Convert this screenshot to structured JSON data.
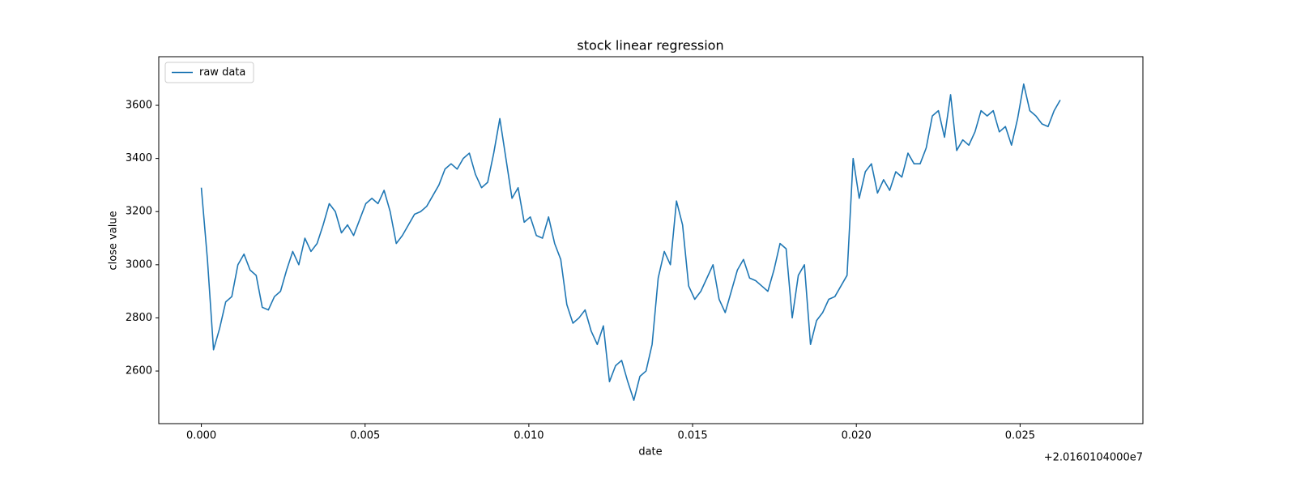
{
  "chart_data": {
    "type": "line",
    "title": "stock linear regression",
    "xlabel": "date",
    "ylabel": "close value",
    "x_offset_label": "+2.0160104000e7",
    "xlim": [
      -0.0013,
      0.02875
    ],
    "ylim": [
      2402,
      3783
    ],
    "xticks": [
      {
        "value": 0,
        "label": "0.000"
      },
      {
        "value": 0.005,
        "label": "0.005"
      },
      {
        "value": 0.01,
        "label": "0.010"
      },
      {
        "value": 0.015,
        "label": "0.015"
      },
      {
        "value": 0.02,
        "label": "0.020"
      },
      {
        "value": 0.025,
        "label": "0.025"
      }
    ],
    "yticks": [
      2600,
      2800,
      3000,
      3200,
      3400,
      3600
    ],
    "grid": false,
    "legend": "upper left",
    "x": [
      0,
      0.000186,
      0.000372,
      0.000558,
      0.000744,
      0.00093,
      0.001116,
      0.001302,
      0.001488,
      0.001674,
      0.00186,
      0.002046,
      0.002232,
      0.002418,
      0.002604,
      0.00279,
      0.002976,
      0.003162,
      0.003348,
      0.003534,
      0.00372,
      0.003906,
      0.004092,
      0.004278,
      0.004464,
      0.00465,
      0.004836,
      0.005022,
      0.005208,
      0.005394,
      0.00558,
      0.005766,
      0.005952,
      0.006138,
      0.006324,
      0.00651,
      0.006696,
      0.006882,
      0.007068,
      0.007254,
      0.00744,
      0.007626,
      0.007812,
      0.007998,
      0.008184,
      0.00837,
      0.008556,
      0.008742,
      0.008928,
      0.009114,
      0.0093,
      0.009486,
      0.009672,
      0.009858,
      0.010044,
      0.01023,
      0.010416,
      0.010602,
      0.010788,
      0.010974,
      0.01116,
      0.011346,
      0.011532,
      0.011718,
      0.011904,
      0.01209,
      0.012276,
      0.012462,
      0.012648,
      0.012834,
      0.01302,
      0.013206,
      0.013392,
      0.013578,
      0.013764,
      0.01395,
      0.014136,
      0.014322,
      0.014508,
      0.014694,
      0.01488,
      0.015066,
      0.015252,
      0.015438,
      0.015624,
      0.01581,
      0.015996,
      0.016182,
      0.016368,
      0.016554,
      0.01674,
      0.016926,
      0.017112,
      0.017298,
      0.017484,
      0.01767,
      0.017856,
      0.018042,
      0.018228,
      0.018414,
      0.0186,
      0.018786,
      0.018972,
      0.019158,
      0.019344,
      0.01953,
      0.019716,
      0.019902,
      0.020088,
      0.020274,
      0.02046,
      0.020646,
      0.020832,
      0.021018,
      0.021204,
      0.02139,
      0.021576,
      0.021762,
      0.021948,
      0.022134,
      0.02232,
      0.022506,
      0.022692,
      0.022878,
      0.023064,
      0.02325,
      0.023436,
      0.023622,
      0.023808,
      0.023994,
      0.02418,
      0.024366,
      0.024552,
      0.024738,
      0.024924,
      0.02511,
      0.025296,
      0.025482,
      0.025668,
      0.025854,
      0.02604,
      0.026226
    ],
    "series": [
      {
        "name": "raw data",
        "color": "#1f77b4",
        "values": [
          3290,
          3020,
          2680,
          2760,
          2860,
          2880,
          3000,
          3040,
          2980,
          2960,
          2840,
          2830,
          2880,
          2900,
          2980,
          3050,
          3000,
          3100,
          3050,
          3080,
          3150,
          3230,
          3200,
          3120,
          3150,
          3110,
          3170,
          3230,
          3250,
          3230,
          3280,
          3200,
          3080,
          3110,
          3150,
          3190,
          3200,
          3220,
          3260,
          3300,
          3360,
          3380,
          3360,
          3400,
          3420,
          3340,
          3290,
          3310,
          3420,
          3550,
          3400,
          3250,
          3290,
          3160,
          3180,
          3110,
          3100,
          3180,
          3080,
          3020,
          2850,
          2780,
          2800,
          2830,
          2750,
          2700,
          2770,
          2560,
          2620,
          2640,
          2560,
          2490,
          2580,
          2600,
          2700,
          2950,
          3050,
          3000,
          3240,
          3150,
          2920,
          2870,
          2900,
          2950,
          3000,
          2870,
          2820,
          2900,
          2980,
          3020,
          2950,
          2940,
          2920,
          2900,
          2980,
          3080,
          3060,
          2800,
          2960,
          3000,
          2700,
          2790,
          2820,
          2870,
          2880,
          2920,
          2960,
          3400,
          3250,
          3350,
          3380,
          3270,
          3320,
          3280,
          3350,
          3330,
          3420,
          3380,
          3380,
          3440,
          3560,
          3580,
          3480,
          3640,
          3430,
          3470,
          3450,
          3500,
          3580,
          3560,
          3580,
          3500,
          3520,
          3450,
          3550,
          3680,
          3580,
          3560,
          3530,
          3520,
          3580,
          3620
        ]
      }
    ]
  }
}
